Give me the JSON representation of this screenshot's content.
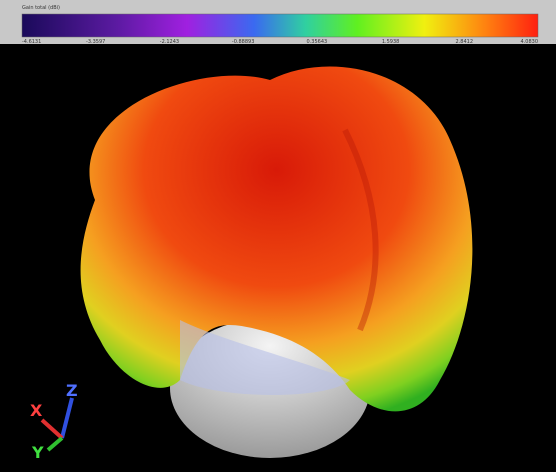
{
  "colorbar": {
    "title": "Gain total (dBi)",
    "ticks": [
      "-4.6131",
      "-3.3597",
      "-2.1243",
      "-0.88893",
      "0.35643",
      "1.5938",
      "2.8412",
      "4.0830"
    ]
  },
  "axes": {
    "x": "X",
    "y": "Y",
    "z": "Z"
  }
}
